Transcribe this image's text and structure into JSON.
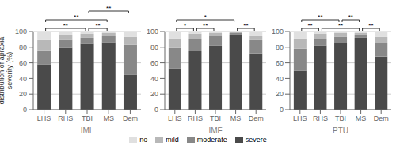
{
  "chart_data": [
    {
      "type": "bar",
      "stacked": true,
      "xlabel": "IML",
      "ylabel": "distribution of apraxia\nseverity (%)",
      "categories": [
        "LHS",
        "RHS",
        "TBI",
        "MS",
        "Dem"
      ],
      "series": [
        {
          "name": "severe",
          "color": "#4a4a4a",
          "values": [
            58,
            79,
            84,
            86,
            45
          ]
        },
        {
          "name": "moderate",
          "color": "#888888",
          "values": [
            18,
            10,
            8,
            8,
            38
          ]
        },
        {
          "name": "mild",
          "color": "#b8b8b8",
          "values": [
            13,
            7,
            5,
            4,
            10
          ]
        },
        {
          "name": "no",
          "color": "#e0e0e0",
          "values": [
            11,
            4,
            3,
            2,
            7
          ]
        }
      ],
      "ylim": [
        0,
        100
      ],
      "yticks": [
        0,
        20,
        40,
        60,
        80,
        100
      ],
      "grid": true,
      "legend": "bottom",
      "annotations": [
        {
          "text": "**",
          "x1": "LHS",
          "x2": "TBI"
        },
        {
          "text": "**",
          "x1": "LHS",
          "x2": "MS"
        },
        {
          "text": "**",
          "x1": "TBI",
          "x2": "MS"
        },
        {
          "text": "**",
          "x1": "TBI",
          "x2": "Dem"
        }
      ]
    },
    {
      "type": "bar",
      "stacked": true,
      "xlabel": "IMF",
      "categories": [
        "LHS",
        "RHS",
        "TBI",
        "MS",
        "Dem"
      ],
      "series": [
        {
          "name": "severe",
          "color": "#4a4a4a",
          "values": [
            53,
            75,
            82,
            96,
            72
          ]
        },
        {
          "name": "moderate",
          "color": "#888888",
          "values": [
            26,
            15,
            12,
            2,
            17
          ]
        },
        {
          "name": "mild",
          "color": "#b8b8b8",
          "values": [
            12,
            7,
            4,
            1,
            6
          ]
        },
        {
          "name": "no",
          "color": "#e0e0e0",
          "values": [
            9,
            3,
            2,
            1,
            5
          ]
        }
      ],
      "ylim": [
        0,
        100
      ],
      "yticks": [
        0,
        20,
        40,
        60,
        80,
        100
      ],
      "grid": true,
      "legend": "bottom",
      "annotations": [
        {
          "text": "*",
          "x1": "LHS",
          "x2": "RHS"
        },
        {
          "text": "**",
          "x1": "RHS",
          "x2": "TBI"
        },
        {
          "text": "*",
          "x1": "LHS",
          "x2": "MS"
        },
        {
          "text": "**",
          "x1": "MS",
          "x2": "Dem"
        }
      ]
    },
    {
      "type": "bar",
      "stacked": true,
      "xlabel": "PTU",
      "categories": [
        "LHS",
        "RHS",
        "TBI",
        "MS",
        "Dem"
      ],
      "series": [
        {
          "name": "severe",
          "color": "#4a4a4a",
          "values": [
            50,
            82,
            85,
            92,
            68
          ]
        },
        {
          "name": "moderate",
          "color": "#888888",
          "values": [
            28,
            8,
            8,
            4,
            17
          ]
        },
        {
          "name": "mild",
          "color": "#b8b8b8",
          "values": [
            13,
            7,
            5,
            2,
            8
          ]
        },
        {
          "name": "no",
          "color": "#e0e0e0",
          "values": [
            9,
            3,
            2,
            2,
            7
          ]
        }
      ],
      "ylim": [
        0,
        100
      ],
      "yticks": [
        0,
        20,
        40,
        60,
        80,
        100
      ],
      "grid": true,
      "legend": "bottom",
      "annotations": [
        {
          "text": "**",
          "x1": "LHS",
          "x2": "RHS"
        },
        {
          "text": "**",
          "x1": "LHS",
          "x2": "TBI"
        },
        {
          "text": "**",
          "x1": "RHS",
          "x2": "MS"
        },
        {
          "text": "**",
          "x1": "TBI",
          "x2": "MS"
        },
        {
          "text": "**",
          "x1": "MS",
          "x2": "Dem"
        }
      ]
    }
  ]
}
